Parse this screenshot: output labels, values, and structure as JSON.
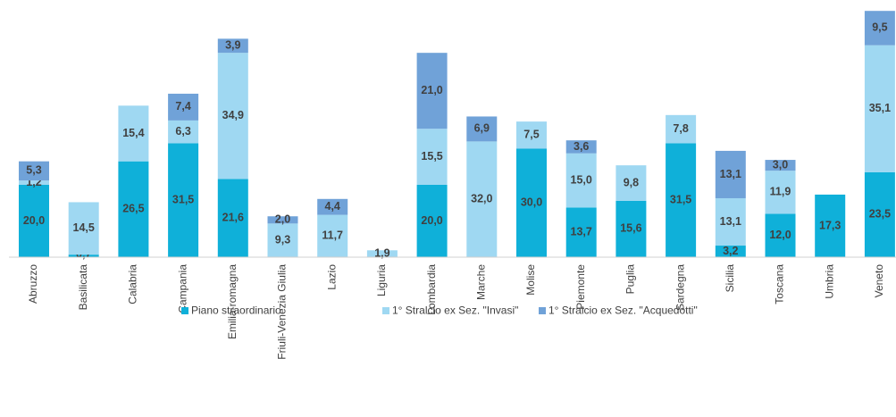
{
  "chart_data": {
    "type": "stacked_bar",
    "categories": [
      "Abruzzo",
      "Basilicata",
      "Calabria",
      "Campania",
      "Emilia-romagna",
      "Friuli-Venezia Giulia",
      "Lazio",
      "Liguria",
      "Lombardia",
      "Marche",
      "Molise",
      "Piemonte",
      "Puglia",
      "Sardegna",
      "Sicilia",
      "Toscana",
      "Umbria",
      "Veneto"
    ],
    "series": [
      {
        "name": "Piano straordinario",
        "color": "#0fb0d9",
        "values": [
          20.0,
          0.7,
          26.5,
          31.5,
          21.6,
          null,
          null,
          null,
          20.0,
          null,
          30.0,
          13.7,
          15.6,
          31.5,
          3.2,
          12.0,
          17.3,
          23.5
        ],
        "value_labels": [
          "20,0",
          "0,7",
          "26,5",
          "31,5",
          "21,6",
          null,
          null,
          null,
          "20,0",
          null,
          "30,0",
          "13,7",
          "15,6",
          "31,5",
          "3,2",
          "12,0",
          "17,3",
          "23,5"
        ]
      },
      {
        "name": "1° Stralcio ex Sez. \"Invasi\"",
        "color": "#9fd8f2",
        "values": [
          1.2,
          14.5,
          15.4,
          6.3,
          34.9,
          9.3,
          11.7,
          1.9,
          15.5,
          32.0,
          7.5,
          15.0,
          9.8,
          7.8,
          13.1,
          11.9,
          null,
          35.1
        ],
        "value_labels": [
          "1,2",
          "14,5",
          "15,4",
          "6,3",
          "34,9",
          "9,3",
          "11,7",
          "1,9",
          "15,5",
          "32,0",
          "7,5",
          "15,0",
          "9,8",
          "7,8",
          "13,1",
          "11,9",
          null,
          "35,1"
        ]
      },
      {
        "name": "1° Stralcio ex Sez. \"Acquedotti\"",
        "color": "#70a2d8",
        "values": [
          5.3,
          null,
          null,
          7.4,
          3.9,
          2.0,
          4.4,
          null,
          21.0,
          6.9,
          null,
          3.6,
          null,
          null,
          13.1,
          3.0,
          null,
          9.5
        ],
        "value_labels": [
          "5,3",
          null,
          null,
          "7,4",
          "3,9",
          "2,0",
          "4,4",
          null,
          "21,0",
          "6,9",
          null,
          "3,6",
          null,
          null,
          "13,1",
          "3,0",
          null,
          "9,5"
        ]
      }
    ]
  }
}
